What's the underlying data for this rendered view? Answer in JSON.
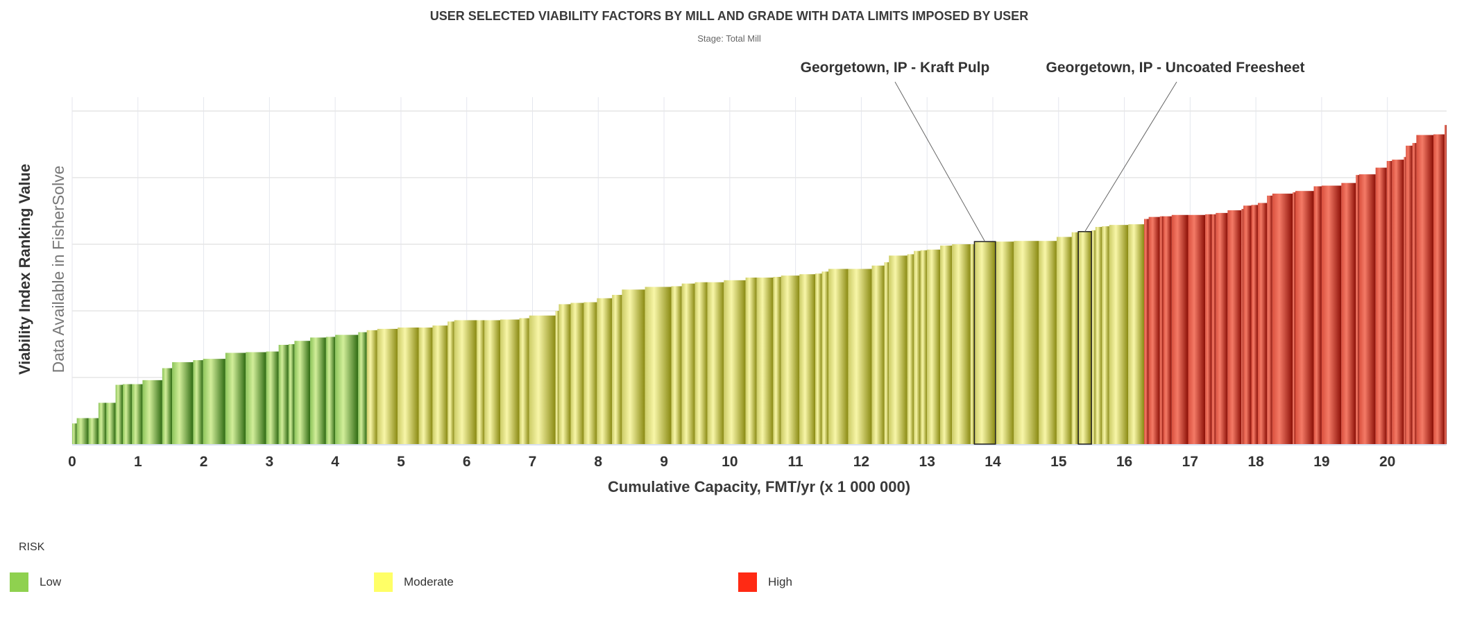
{
  "chart_data": {
    "type": "bar",
    "variant": "variable-width cumulative capacity bars",
    "title": "USER SELECTED VIABILITY FACTORS BY MILL AND GRADE WITH DATA LIMITS IMPOSED BY USER",
    "subtitle": "Stage: Total Mill",
    "xlabel": "Cumulative Capacity, FMT/yr (x 1 000 000)",
    "ylabel": "Viability Index Ranking Value",
    "ylabel_note": "Data Available in FisherSolve",
    "xlim": [
      0,
      20.9
    ],
    "ylim": [
      0,
      5.25
    ],
    "x_ticks": [
      "0",
      "1",
      "2",
      "3",
      "4",
      "5",
      "6",
      "7",
      "8",
      "9",
      "10",
      "11",
      "12",
      "13",
      "14",
      "15",
      "16",
      "17",
      "18",
      "19",
      "20"
    ],
    "y_gridlines": [
      1,
      2,
      3,
      4,
      5
    ],
    "y_tick_labels_shown": false,
    "grid": true,
    "legend": {
      "title": "RISK",
      "placement": "bottom-left",
      "items": [
        {
          "label": "Low",
          "color": "#8fd14f"
        },
        {
          "label": "Moderate",
          "color": "#ffff66"
        },
        {
          "label": "High",
          "color": "#ff2a14"
        }
      ]
    },
    "risk_colors": {
      "Low": {
        "light": "#d2ee9a",
        "mid": "#8cc45a",
        "dark": "#2f6b12"
      },
      "Moderate": {
        "light": "#f8f6a8",
        "mid": "#cccc66",
        "dark": "#8a8a12"
      },
      "High": {
        "light": "#f47a66",
        "mid": "#d9503e",
        "dark": "#8c0f06"
      }
    },
    "bars": [
      {
        "x0": 0,
        "x1": 0.07,
        "y": 0.31,
        "risk": "Low"
      },
      {
        "x0": 0.07,
        "x1": 0.25,
        "y": 0.39,
        "risk": "Low"
      },
      {
        "x0": 0.25,
        "x1": 0.4,
        "y": 0.39,
        "risk": "Low"
      },
      {
        "x0": 0.4,
        "x1": 0.52,
        "y": 0.62,
        "risk": "Low"
      },
      {
        "x0": 0.52,
        "x1": 0.66,
        "y": 0.62,
        "risk": "Low"
      },
      {
        "x0": 0.66,
        "x1": 0.77,
        "y": 0.89,
        "risk": "Low"
      },
      {
        "x0": 0.77,
        "x1": 0.91,
        "y": 0.9,
        "risk": "Low"
      },
      {
        "x0": 0.91,
        "x1": 1.07,
        "y": 0.9,
        "risk": "Low"
      },
      {
        "x0": 1.07,
        "x1": 1.37,
        "y": 0.96,
        "risk": "Low"
      },
      {
        "x0": 1.37,
        "x1": 1.52,
        "y": 1.14,
        "risk": "Low"
      },
      {
        "x0": 1.52,
        "x1": 1.84,
        "y": 1.23,
        "risk": "Low"
      },
      {
        "x0": 1.84,
        "x1": 1.99,
        "y": 1.26,
        "risk": "Low"
      },
      {
        "x0": 1.99,
        "x1": 2.33,
        "y": 1.28,
        "risk": "Low"
      },
      {
        "x0": 2.33,
        "x1": 2.64,
        "y": 1.37,
        "risk": "Low"
      },
      {
        "x0": 2.64,
        "x1": 2.95,
        "y": 1.38,
        "risk": "Low"
      },
      {
        "x0": 2.95,
        "x1": 3.14,
        "y": 1.39,
        "risk": "Low"
      },
      {
        "x0": 3.14,
        "x1": 3.29,
        "y": 1.49,
        "risk": "Low"
      },
      {
        "x0": 3.29,
        "x1": 3.38,
        "y": 1.5,
        "risk": "Low"
      },
      {
        "x0": 3.38,
        "x1": 3.62,
        "y": 1.55,
        "risk": "Low"
      },
      {
        "x0": 3.62,
        "x1": 3.86,
        "y": 1.6,
        "risk": "Low"
      },
      {
        "x0": 3.86,
        "x1": 4.0,
        "y": 1.61,
        "risk": "Low"
      },
      {
        "x0": 4.0,
        "x1": 4.35,
        "y": 1.64,
        "risk": "Low"
      },
      {
        "x0": 4.35,
        "x1": 4.48,
        "y": 1.68,
        "risk": "Low"
      },
      {
        "x0": 4.48,
        "x1": 4.64,
        "y": 1.71,
        "risk": "Moderate"
      },
      {
        "x0": 4.64,
        "x1": 4.95,
        "y": 1.73,
        "risk": "Moderate"
      },
      {
        "x0": 4.95,
        "x1": 5.27,
        "y": 1.75,
        "risk": "Moderate"
      },
      {
        "x0": 5.27,
        "x1": 5.48,
        "y": 1.75,
        "risk": "Moderate"
      },
      {
        "x0": 5.48,
        "x1": 5.71,
        "y": 1.78,
        "risk": "Moderate"
      },
      {
        "x0": 5.71,
        "x1": 5.81,
        "y": 1.84,
        "risk": "Moderate"
      },
      {
        "x0": 5.81,
        "x1": 6.15,
        "y": 1.86,
        "risk": "Moderate"
      },
      {
        "x0": 6.15,
        "x1": 6.27,
        "y": 1.86,
        "risk": "Moderate"
      },
      {
        "x0": 6.27,
        "x1": 6.51,
        "y": 1.86,
        "risk": "Moderate"
      },
      {
        "x0": 6.51,
        "x1": 6.8,
        "y": 1.87,
        "risk": "Moderate"
      },
      {
        "x0": 6.8,
        "x1": 6.95,
        "y": 1.89,
        "risk": "Moderate"
      },
      {
        "x0": 6.95,
        "x1": 7.35,
        "y": 1.93,
        "risk": "Moderate"
      },
      {
        "x0": 7.35,
        "x1": 7.4,
        "y": 2.0,
        "risk": "Moderate"
      },
      {
        "x0": 7.4,
        "x1": 7.58,
        "y": 2.1,
        "risk": "Moderate"
      },
      {
        "x0": 7.58,
        "x1": 7.78,
        "y": 2.12,
        "risk": "Moderate"
      },
      {
        "x0": 7.78,
        "x1": 7.98,
        "y": 2.13,
        "risk": "Moderate"
      },
      {
        "x0": 7.98,
        "x1": 8.21,
        "y": 2.19,
        "risk": "Moderate"
      },
      {
        "x0": 8.21,
        "x1": 8.36,
        "y": 2.24,
        "risk": "Moderate"
      },
      {
        "x0": 8.36,
        "x1": 8.71,
        "y": 2.32,
        "risk": "Moderate"
      },
      {
        "x0": 8.71,
        "x1": 9.11,
        "y": 2.36,
        "risk": "Moderate"
      },
      {
        "x0": 9.11,
        "x1": 9.27,
        "y": 2.37,
        "risk": "Moderate"
      },
      {
        "x0": 9.27,
        "x1": 9.47,
        "y": 2.41,
        "risk": "Moderate"
      },
      {
        "x0": 9.47,
        "x1": 9.66,
        "y": 2.43,
        "risk": "Moderate"
      },
      {
        "x0": 9.66,
        "x1": 9.91,
        "y": 2.43,
        "risk": "Moderate"
      },
      {
        "x0": 9.91,
        "x1": 10.24,
        "y": 2.46,
        "risk": "Moderate"
      },
      {
        "x0": 10.24,
        "x1": 10.41,
        "y": 2.5,
        "risk": "Moderate"
      },
      {
        "x0": 10.41,
        "x1": 10.66,
        "y": 2.5,
        "risk": "Moderate"
      },
      {
        "x0": 10.66,
        "x1": 10.78,
        "y": 2.51,
        "risk": "Moderate"
      },
      {
        "x0": 10.78,
        "x1": 11.06,
        "y": 2.53,
        "risk": "Moderate"
      },
      {
        "x0": 11.06,
        "x1": 11.3,
        "y": 2.55,
        "risk": "Moderate"
      },
      {
        "x0": 11.3,
        "x1": 11.4,
        "y": 2.56,
        "risk": "Moderate"
      },
      {
        "x0": 11.4,
        "x1": 11.5,
        "y": 2.59,
        "risk": "Moderate"
      },
      {
        "x0": 11.5,
        "x1": 11.8,
        "y": 2.63,
        "risk": "Moderate"
      },
      {
        "x0": 11.8,
        "x1": 12.16,
        "y": 2.63,
        "risk": "Moderate"
      },
      {
        "x0": 12.16,
        "x1": 12.35,
        "y": 2.68,
        "risk": "Moderate"
      },
      {
        "x0": 12.35,
        "x1": 12.42,
        "y": 2.73,
        "risk": "Moderate"
      },
      {
        "x0": 12.42,
        "x1": 12.7,
        "y": 2.83,
        "risk": "Moderate"
      },
      {
        "x0": 12.7,
        "x1": 12.8,
        "y": 2.85,
        "risk": "Moderate"
      },
      {
        "x0": 12.8,
        "x1": 12.9,
        "y": 2.9,
        "risk": "Moderate"
      },
      {
        "x0": 12.9,
        "x1": 13.0,
        "y": 2.91,
        "risk": "Moderate"
      },
      {
        "x0": 13.0,
        "x1": 13.2,
        "y": 2.92,
        "risk": "Moderate"
      },
      {
        "x0": 13.2,
        "x1": 13.38,
        "y": 2.98,
        "risk": "Moderate"
      },
      {
        "x0": 13.38,
        "x1": 13.66,
        "y": 3.0,
        "risk": "Moderate"
      },
      {
        "x0": 13.66,
        "x1": 13.72,
        "y": 3.0,
        "risk": "Moderate"
      },
      {
        "x0": 13.72,
        "x1": 14.04,
        "y": 3.04,
        "risk": "Moderate",
        "highlight": "Georgetown, IP - Kraft Pulp"
      },
      {
        "x0": 14.04,
        "x1": 14.32,
        "y": 3.04,
        "risk": "Moderate"
      },
      {
        "x0": 14.32,
        "x1": 14.7,
        "y": 3.05,
        "risk": "Moderate"
      },
      {
        "x0": 14.7,
        "x1": 14.97,
        "y": 3.05,
        "risk": "Moderate"
      },
      {
        "x0": 14.97,
        "x1": 15.2,
        "y": 3.11,
        "risk": "Moderate"
      },
      {
        "x0": 15.2,
        "x1": 15.3,
        "y": 3.18,
        "risk": "Moderate"
      },
      {
        "x0": 15.3,
        "x1": 15.5,
        "y": 3.19,
        "risk": "Moderate",
        "highlight": "Georgetown, IP - Uncoated Freesheet"
      },
      {
        "x0": 15.5,
        "x1": 15.56,
        "y": 3.21,
        "risk": "Moderate"
      },
      {
        "x0": 15.56,
        "x1": 15.66,
        "y": 3.26,
        "risk": "Moderate"
      },
      {
        "x0": 15.66,
        "x1": 15.77,
        "y": 3.27,
        "risk": "Moderate"
      },
      {
        "x0": 15.77,
        "x1": 16.06,
        "y": 3.29,
        "risk": "Moderate"
      },
      {
        "x0": 16.06,
        "x1": 16.3,
        "y": 3.3,
        "risk": "Moderate"
      },
      {
        "x0": 16.3,
        "x1": 16.37,
        "y": 3.38,
        "risk": "High"
      },
      {
        "x0": 16.37,
        "x1": 16.54,
        "y": 3.41,
        "risk": "High"
      },
      {
        "x0": 16.54,
        "x1": 16.59,
        "y": 3.42,
        "risk": "High"
      },
      {
        "x0": 16.59,
        "x1": 16.72,
        "y": 3.42,
        "risk": "High"
      },
      {
        "x0": 16.72,
        "x1": 16.97,
        "y": 3.44,
        "risk": "High"
      },
      {
        "x0": 16.97,
        "x1": 17.23,
        "y": 3.44,
        "risk": "High"
      },
      {
        "x0": 17.23,
        "x1": 17.33,
        "y": 3.45,
        "risk": "High"
      },
      {
        "x0": 17.33,
        "x1": 17.39,
        "y": 3.45,
        "risk": "High"
      },
      {
        "x0": 17.39,
        "x1": 17.57,
        "y": 3.47,
        "risk": "High"
      },
      {
        "x0": 17.57,
        "x1": 17.78,
        "y": 3.51,
        "risk": "High"
      },
      {
        "x0": 17.78,
        "x1": 17.81,
        "y": 3.53,
        "risk": "High"
      },
      {
        "x0": 17.81,
        "x1": 17.93,
        "y": 3.58,
        "risk": "High"
      },
      {
        "x0": 17.93,
        "x1": 18.03,
        "y": 3.59,
        "risk": "High"
      },
      {
        "x0": 18.03,
        "x1": 18.17,
        "y": 3.62,
        "risk": "High"
      },
      {
        "x0": 18.17,
        "x1": 18.25,
        "y": 3.73,
        "risk": "High"
      },
      {
        "x0": 18.25,
        "x1": 18.56,
        "y": 3.76,
        "risk": "High"
      },
      {
        "x0": 18.56,
        "x1": 18.6,
        "y": 3.78,
        "risk": "High"
      },
      {
        "x0": 18.6,
        "x1": 18.88,
        "y": 3.8,
        "risk": "High"
      },
      {
        "x0": 18.88,
        "x1": 19.0,
        "y": 3.87,
        "risk": "High"
      },
      {
        "x0": 19.0,
        "x1": 19.3,
        "y": 3.88,
        "risk": "High"
      },
      {
        "x0": 19.3,
        "x1": 19.52,
        "y": 3.92,
        "risk": "High"
      },
      {
        "x0": 19.52,
        "x1": 19.57,
        "y": 4.04,
        "risk": "High"
      },
      {
        "x0": 19.57,
        "x1": 19.82,
        "y": 4.05,
        "risk": "High"
      },
      {
        "x0": 19.82,
        "x1": 19.99,
        "y": 4.15,
        "risk": "High"
      },
      {
        "x0": 19.99,
        "x1": 20.07,
        "y": 4.25,
        "risk": "High"
      },
      {
        "x0": 20.07,
        "x1": 20.25,
        "y": 4.27,
        "risk": "High"
      },
      {
        "x0": 20.25,
        "x1": 20.28,
        "y": 4.31,
        "risk": "High"
      },
      {
        "x0": 20.28,
        "x1": 20.38,
        "y": 4.48,
        "risk": "High"
      },
      {
        "x0": 20.38,
        "x1": 20.44,
        "y": 4.52,
        "risk": "High"
      },
      {
        "x0": 20.44,
        "x1": 20.7,
        "y": 4.64,
        "risk": "High"
      },
      {
        "x0": 20.7,
        "x1": 20.87,
        "y": 4.65,
        "risk": "High"
      },
      {
        "x0": 20.87,
        "x1": 20.9,
        "y": 4.79,
        "risk": "High"
      }
    ],
    "annotations": [
      {
        "label": "Georgetown, IP - Kraft Pulp"
      },
      {
        "label": "Georgetown, IP - Uncoated Freesheet"
      }
    ]
  }
}
